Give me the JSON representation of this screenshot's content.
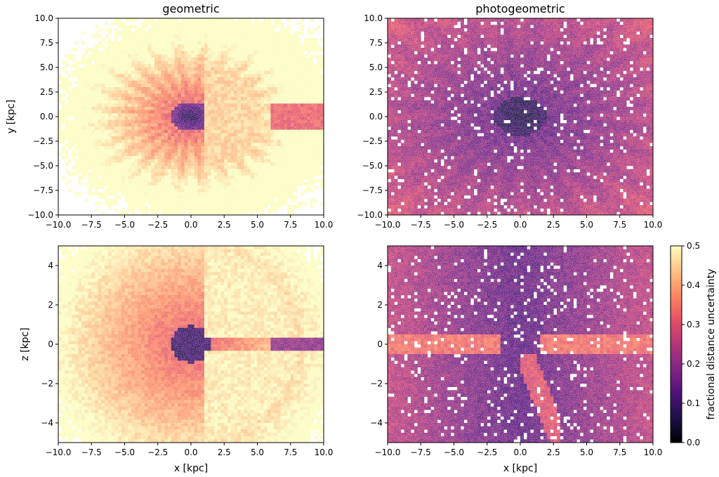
{
  "colorbar": {
    "label": "fractional distance uncertainty",
    "range": [
      0.0,
      0.5
    ],
    "ticks": [
      "0.0",
      "0.1",
      "0.2",
      "0.3",
      "0.4",
      "0.5"
    ],
    "colormap": "magma",
    "colors": [
      "#000004",
      "#1c1044",
      "#4f127b",
      "#812581",
      "#b5367a",
      "#e55064",
      "#fb8761",
      "#fec287",
      "#fcfdbf"
    ]
  },
  "chart_data": [
    {
      "type": "heatmap",
      "title": "geometric",
      "xlabel": "",
      "ylabel": "y [kpc]",
      "xlim": [
        -10,
        10
      ],
      "ylim": [
        -10,
        10
      ],
      "xticks": [
        "−10.0",
        "−7.5",
        "−5.0",
        "−2.5",
        "0.0",
        "2.5",
        "5.0",
        "7.5",
        "10.0"
      ],
      "yticks": [
        "10.0",
        "7.5",
        "5.0",
        "2.5",
        "0.0",
        "−2.5",
        "−5.0",
        "−7.5",
        "−10.0"
      ],
      "tick_values_x": [
        -10,
        -7.5,
        -5,
        -2.5,
        0,
        2.5,
        5,
        7.5,
        10
      ],
      "tick_values_y": [
        10,
        7.5,
        5,
        2.5,
        0,
        -2.5,
        -5,
        -7.5,
        -10
      ],
      "color_value_range": [
        0.05,
        0.5
      ]
    },
    {
      "type": "heatmap",
      "title": "photogeometric",
      "xlabel": "",
      "ylabel": "",
      "xlim": [
        -10,
        10
      ],
      "ylim": [
        -10,
        10
      ],
      "xticks": [
        "−10.0",
        "−7.5",
        "−5.0",
        "−2.5",
        "0.0",
        "2.5",
        "5.0",
        "7.5",
        "10.0"
      ],
      "yticks": [
        "10.0",
        "7.5",
        "5.0",
        "2.5",
        "0.0",
        "−2.5",
        "−5.0",
        "−7.5",
        "−10.0"
      ],
      "tick_values_x": [
        -10,
        -7.5,
        -5,
        -2.5,
        0,
        2.5,
        5,
        7.5,
        10
      ],
      "tick_values_y": [
        10,
        7.5,
        5,
        2.5,
        0,
        -2.5,
        -5,
        -7.5,
        -10
      ],
      "color_value_range": [
        0.05,
        0.35
      ]
    },
    {
      "type": "heatmap",
      "title": "",
      "xlabel": "x [kpc]",
      "ylabel": "z [kpc]",
      "xlim": [
        -10,
        10
      ],
      "ylim": [
        -5,
        5
      ],
      "xticks": [
        "−10.0",
        "−7.5",
        "−5.0",
        "−2.5",
        "0.0",
        "2.5",
        "5.0",
        "7.5",
        "10.0"
      ],
      "yticks": [
        "4",
        "2",
        "0",
        "−2",
        "−4"
      ],
      "tick_values_x": [
        -10,
        -7.5,
        -5,
        -2.5,
        0,
        2.5,
        5,
        7.5,
        10
      ],
      "tick_values_y": [
        4,
        2,
        0,
        -2,
        -4
      ],
      "color_value_range": [
        0.05,
        0.5
      ]
    },
    {
      "type": "heatmap",
      "title": "",
      "xlabel": "x [kpc]",
      "ylabel": "",
      "xlim": [
        -10,
        10
      ],
      "ylim": [
        -5,
        5
      ],
      "xticks": [
        "−10.0",
        "−7.5",
        "−5.0",
        "−2.5",
        "0.0",
        "2.5",
        "5.0",
        "7.5",
        "10.0"
      ],
      "yticks": [
        "4",
        "2",
        "0",
        "−2",
        "−4"
      ],
      "tick_values_x": [
        -10,
        -7.5,
        -5,
        -2.5,
        0,
        2.5,
        5,
        7.5,
        10
      ],
      "tick_values_y": [
        4,
        2,
        0,
        -2,
        -4
      ],
      "color_value_range": [
        0.05,
        0.35
      ]
    }
  ]
}
